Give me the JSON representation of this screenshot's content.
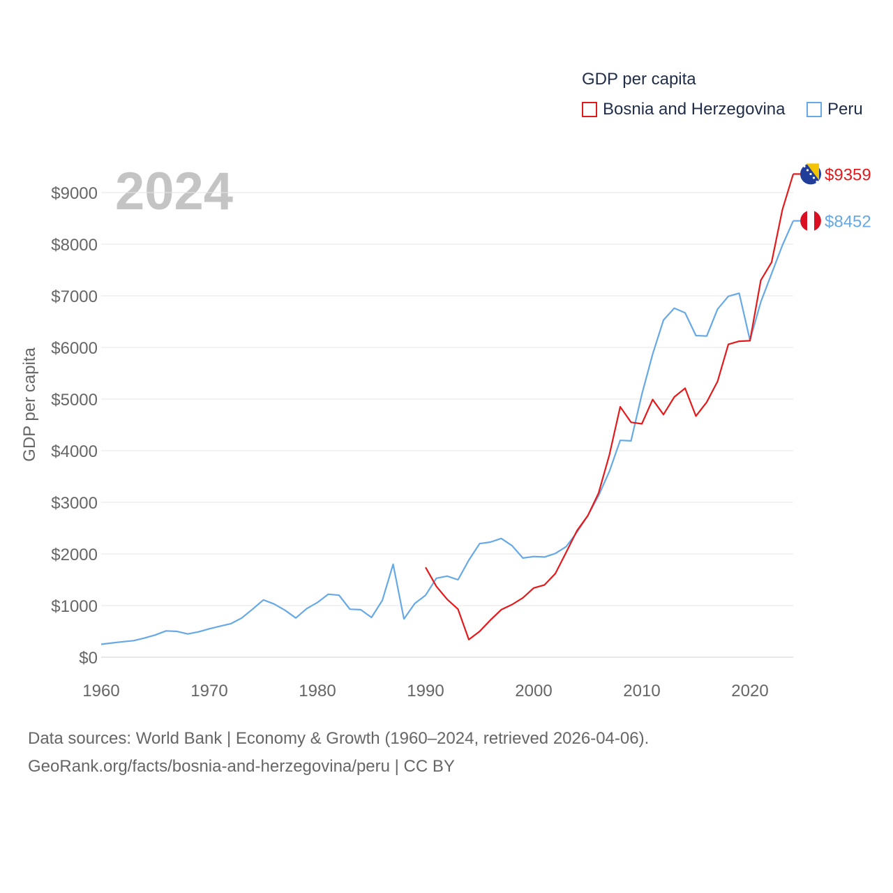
{
  "legend": {
    "title": "GDP per capita",
    "items": [
      {
        "label": "Bosnia and Herzegovina",
        "color": "#e31a1c"
      },
      {
        "label": "Peru",
        "color": "#66a9e6"
      }
    ]
  },
  "footer": {
    "line1": "Data sources: World Bank | Economy & Growth (1960–2024, retrieved 2026-04-06).",
    "line2": "GeoRank.org/facts/bosnia-and-herzegovina/peru | CC BY"
  },
  "chart_data": {
    "type": "line",
    "watermark_year": "2024",
    "ylabel": "GDP per capita",
    "xlabel": "",
    "xlim": [
      1960,
      2024
    ],
    "ylim": [
      0,
      9000
    ],
    "x_ticks": [
      1960,
      1970,
      1980,
      1990,
      2000,
      2010,
      2020
    ],
    "x_tick_labels": [
      "1960",
      "1970",
      "1980",
      "1990",
      "2000",
      "2010",
      "2020"
    ],
    "y_ticks": [
      0,
      1000,
      2000,
      3000,
      4000,
      5000,
      6000,
      7000,
      8000,
      9000
    ],
    "y_tick_labels": [
      "$0",
      "$1000",
      "$2000",
      "$3000",
      "$4000",
      "$5000",
      "$6000",
      "$7000",
      "$8000",
      "$9000"
    ],
    "grid": true,
    "series": [
      {
        "name": "Bosnia and Herzegovina",
        "color": "#e31a1c",
        "end_label": "$9359",
        "flag": "bosnia-and-herzegovina",
        "x": [
          1990,
          1991,
          1992,
          1993,
          1994,
          1995,
          1996,
          1997,
          1998,
          1999,
          2000,
          2001,
          2002,
          2003,
          2004,
          2005,
          2006,
          2007,
          2008,
          2009,
          2010,
          2011,
          2012,
          2013,
          2014,
          2015,
          2016,
          2017,
          2018,
          2019,
          2020,
          2021,
          2022,
          2023,
          2024
        ],
        "values": [
          1740,
          1370,
          1120,
          930,
          340,
          500,
          720,
          920,
          1020,
          1150,
          1340,
          1400,
          1620,
          2030,
          2450,
          2740,
          3180,
          3920,
          4850,
          4550,
          4520,
          4990,
          4700,
          5040,
          5210,
          4670,
          4940,
          5340,
          6060,
          6120,
          6130,
          7300,
          7650,
          8670,
          9359
        ]
      },
      {
        "name": "Peru",
        "color": "#66a9e6",
        "end_label": "$8452",
        "flag": "peru",
        "x": [
          1960,
          1961,
          1962,
          1963,
          1964,
          1965,
          1966,
          1967,
          1968,
          1969,
          1970,
          1971,
          1972,
          1973,
          1974,
          1975,
          1976,
          1977,
          1978,
          1979,
          1980,
          1981,
          1982,
          1983,
          1984,
          1985,
          1986,
          1987,
          1988,
          1989,
          1990,
          1991,
          1992,
          1993,
          1994,
          1995,
          1996,
          1997,
          1998,
          1999,
          2000,
          2001,
          2002,
          2003,
          2004,
          2005,
          2006,
          2007,
          2008,
          2009,
          2010,
          2011,
          2012,
          2013,
          2014,
          2015,
          2016,
          2017,
          2018,
          2019,
          2020,
          2021,
          2022,
          2023,
          2024
        ],
        "values": [
          250,
          275,
          300,
          320,
          370,
          430,
          510,
          500,
          450,
          490,
          550,
          600,
          650,
          760,
          930,
          1110,
          1030,
          910,
          760,
          940,
          1060,
          1220,
          1200,
          930,
          920,
          770,
          1100,
          1800,
          740,
          1040,
          1200,
          1530,
          1570,
          1500,
          1880,
          2200,
          2230,
          2300,
          2160,
          1920,
          1950,
          1940,
          2010,
          2140,
          2420,
          2740,
          3130,
          3600,
          4200,
          4190,
          5090,
          5870,
          6530,
          6760,
          6670,
          6230,
          6220,
          6740,
          6990,
          7050,
          6140,
          6880,
          7430,
          7980,
          8452
        ]
      }
    ]
  }
}
